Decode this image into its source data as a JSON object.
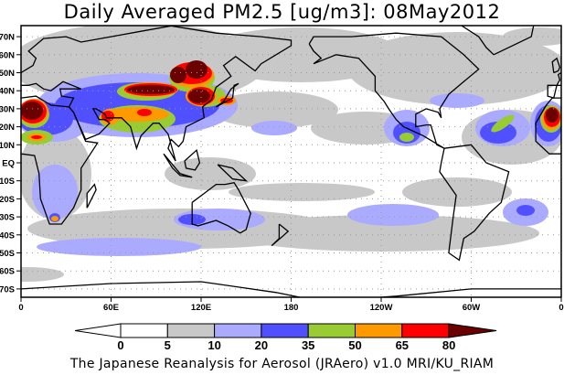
{
  "title": "Daily Averaged PM2.5 [ug/m3]: 08May2012",
  "credit": "The Japanese Reanalysis for Aerosol (JRAero) v1.0 MRI/KU_RIAM",
  "map": {
    "variable": "PM2.5",
    "units": "ug/m3",
    "date": "08May2012",
    "lat_labels": [
      "70N",
      "60N",
      "50N",
      "40N",
      "30N",
      "20N",
      "10N",
      "EQ",
      "10S",
      "20S",
      "30S",
      "40S",
      "50S",
      "60S",
      "70S"
    ],
    "lon_labels": [
      "0",
      "60E",
      "120E",
      "180",
      "120W",
      "60W",
      "0"
    ]
  },
  "colorbar": {
    "levels": [
      "0",
      "5",
      "10",
      "20",
      "35",
      "50",
      "65",
      "80"
    ],
    "colors": [
      "#ffffff",
      "#ffffff",
      "#c8c8c8",
      "#aaaaff",
      "#5050ff",
      "#99cc33",
      "#ff9900",
      "#ff0000",
      "#6b0000"
    ]
  }
}
